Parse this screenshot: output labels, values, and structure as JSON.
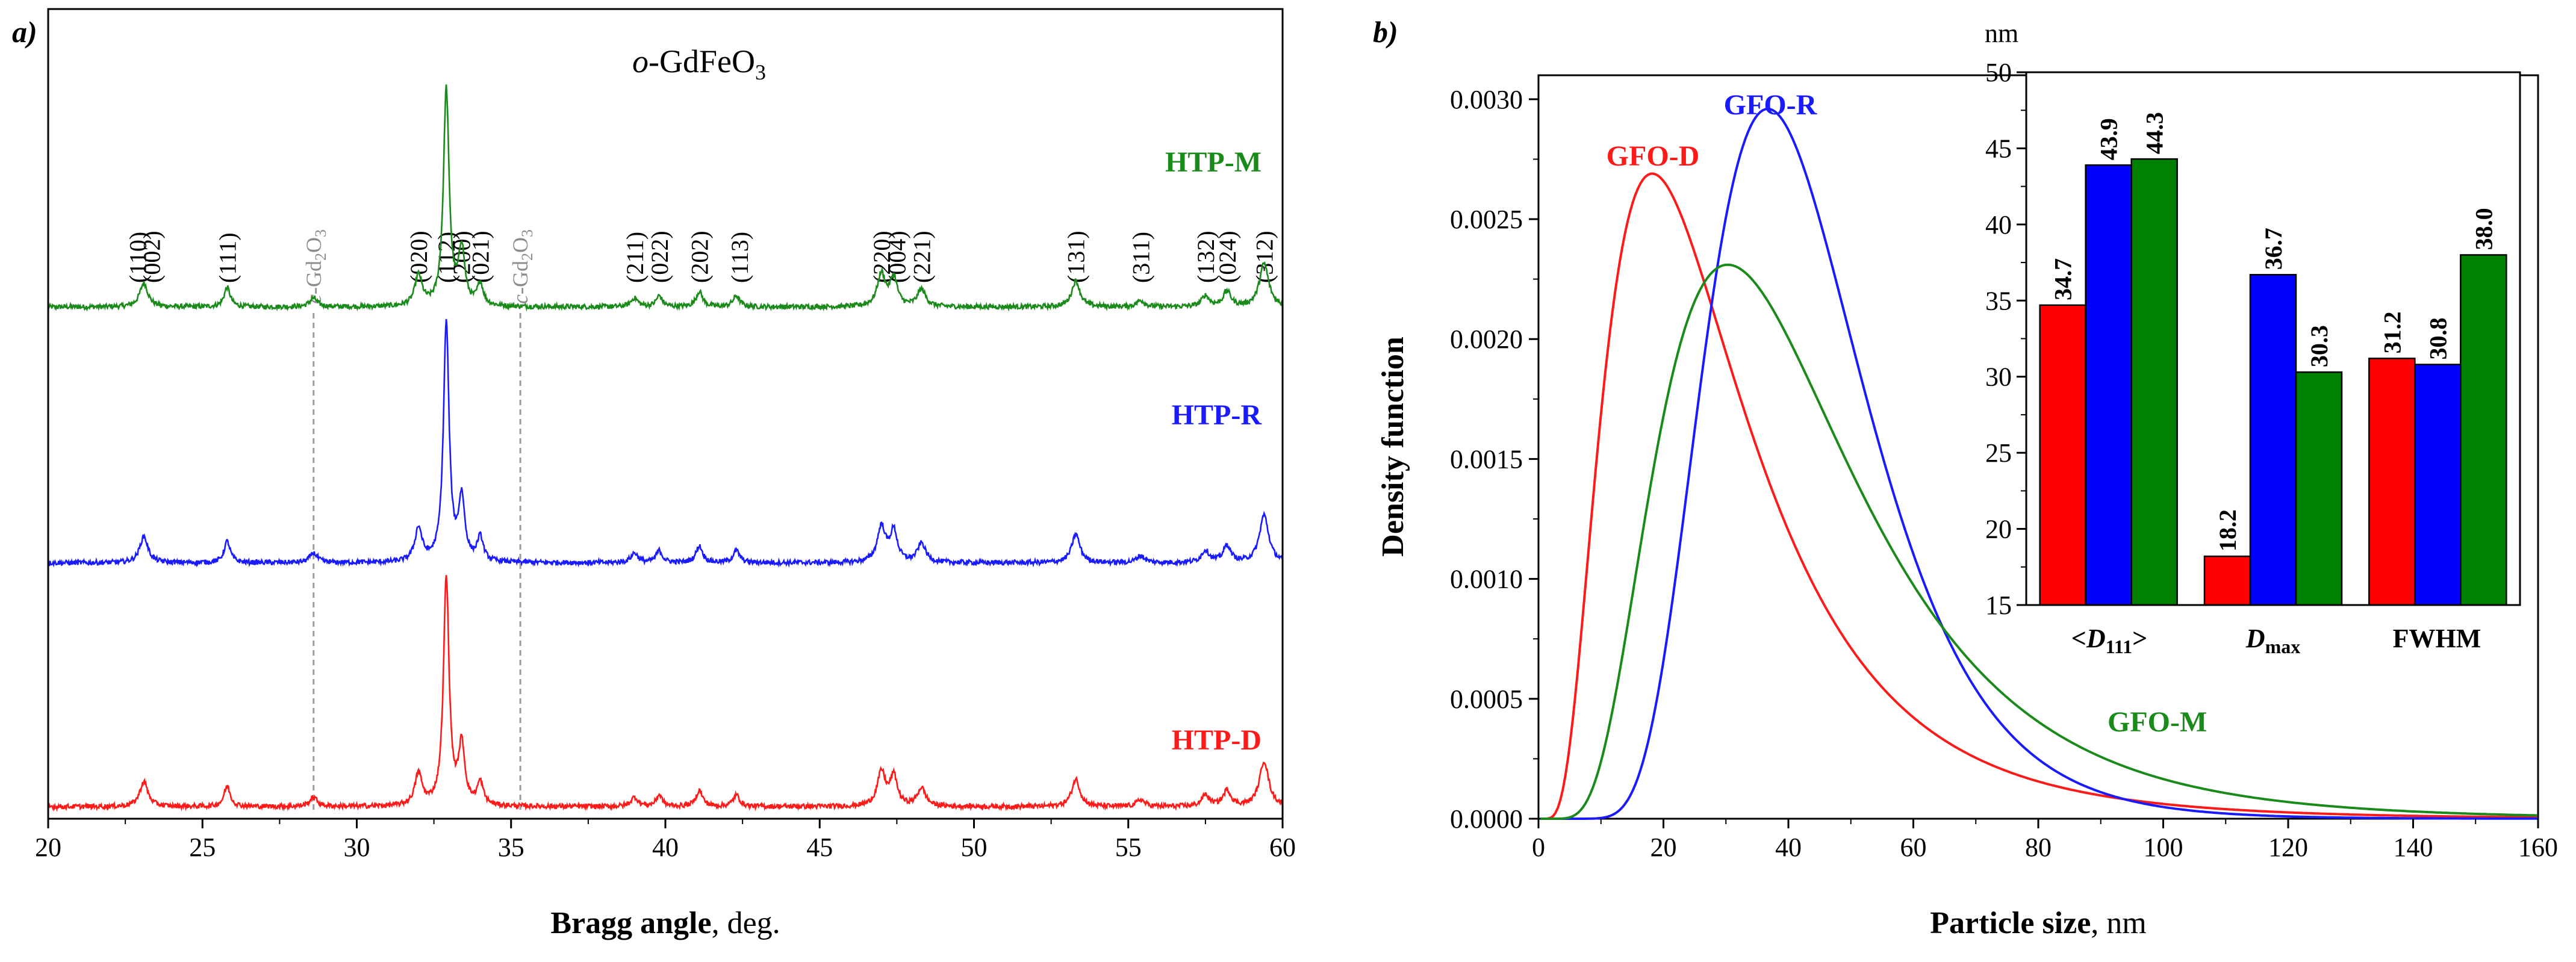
{
  "figure": {
    "panel_a_label": "a)",
    "panel_b_label": "b)"
  },
  "chart_data": [
    {
      "id": "xrd",
      "type": "line",
      "title_prefix": "o",
      "title_main": "-GdFeO",
      "title_sub": "3",
      "xlabel_bold": "Bragg angle",
      "xlabel_rest": ", deg.",
      "xlim": [
        20,
        60
      ],
      "xticks": [
        20,
        25,
        30,
        35,
        40,
        45,
        50,
        55,
        60
      ],
      "series": [
        {
          "name": "HTP-M",
          "color": "#1a8a1a",
          "intensity_scale": 1.0
        },
        {
          "name": "HTP-R",
          "color": "#1a1aff",
          "intensity_scale": 1.1
        },
        {
          "name": "HTP-D",
          "color": "#ff1a1a",
          "intensity_scale": 1.05
        }
      ],
      "peaks": [
        {
          "pos": 23.1,
          "h": 0.11,
          "w": 0.16
        },
        {
          "pos": 25.8,
          "h": 0.09,
          "w": 0.12
        },
        {
          "pos": 28.6,
          "h": 0.04,
          "w": 0.15
        },
        {
          "pos": 32.0,
          "h": 0.14,
          "w": 0.14
        },
        {
          "pos": 32.9,
          "h": 1.0,
          "w": 0.11
        },
        {
          "pos": 33.4,
          "h": 0.26,
          "w": 0.12
        },
        {
          "pos": 34.0,
          "h": 0.1,
          "w": 0.12
        },
        {
          "pos": 39.0,
          "h": 0.04,
          "w": 0.14
        },
        {
          "pos": 39.8,
          "h": 0.05,
          "w": 0.12
        },
        {
          "pos": 41.1,
          "h": 0.07,
          "w": 0.13
        },
        {
          "pos": 42.3,
          "h": 0.05,
          "w": 0.13
        },
        {
          "pos": 47.0,
          "h": 0.15,
          "w": 0.16
        },
        {
          "pos": 47.4,
          "h": 0.13,
          "w": 0.14
        },
        {
          "pos": 48.3,
          "h": 0.08,
          "w": 0.16
        },
        {
          "pos": 53.3,
          "h": 0.12,
          "w": 0.16
        },
        {
          "pos": 55.4,
          "h": 0.03,
          "w": 0.15
        },
        {
          "pos": 57.5,
          "h": 0.05,
          "w": 0.15
        },
        {
          "pos": 58.2,
          "h": 0.07,
          "w": 0.15
        },
        {
          "pos": 59.4,
          "h": 0.2,
          "w": 0.18
        }
      ],
      "reflections": [
        {
          "label": "(110)",
          "pos": 22.9
        },
        {
          "label": "(002)",
          "pos": 23.35
        },
        {
          "label": "(111)",
          "pos": 25.8
        },
        {
          "label": "(020)",
          "pos": 32.0
        },
        {
          "label": "(112)",
          "pos": 32.9
        },
        {
          "label": "(200)",
          "pos": 33.4
        },
        {
          "label": "(021)",
          "pos": 34.0
        },
        {
          "label": "(211)",
          "pos": 39.0
        },
        {
          "label": "(022)",
          "pos": 39.8
        },
        {
          "label": "(202)",
          "pos": 41.1
        },
        {
          "label": "(113)",
          "pos": 42.4
        },
        {
          "label": "(220)",
          "pos": 47.0
        },
        {
          "label": "(004)",
          "pos": 47.5
        },
        {
          "label": "(221)",
          "pos": 48.3
        },
        {
          "label": "(131)",
          "pos": 53.3
        },
        {
          "label": "(311)",
          "pos": 55.4
        },
        {
          "label": "(132)",
          "pos": 57.5
        },
        {
          "label": "(024)",
          "pos": 58.2
        },
        {
          "label": "(312)",
          "pos": 59.4
        }
      ],
      "impurity": {
        "label_prefix": "c",
        "label_main": "-Gd",
        "label_sub1": "2",
        "label_mid": "O",
        "label_sub2": "3",
        "positions": [
          28.6,
          35.3
        ]
      }
    },
    {
      "id": "psd",
      "type": "line",
      "xlabel_bold": "Particle size",
      "xlabel_rest": ", nm",
      "ylabel": "Density function",
      "xlim": [
        0,
        160
      ],
      "ylim": [
        0,
        0.0031
      ],
      "xticks": [
        0,
        20,
        40,
        60,
        80,
        100,
        120,
        140,
        160
      ],
      "yticks": [
        "0.0000",
        "0.0005",
        "0.0010",
        "0.0015",
        "0.0020",
        "0.0025",
        "0.0030"
      ],
      "series": [
        {
          "name": "GFO-D",
          "color": "#ff1a1a",
          "mode_nm": 18.2,
          "sigma": 0.62,
          "peak_density": 0.00269
        },
        {
          "name": "GFO-R",
          "color": "#1a1aff",
          "mode_nm": 36.7,
          "sigma": 0.35,
          "peak_density": 0.00296
        },
        {
          "name": "GFO-M",
          "color": "#1a8a1a",
          "mode_nm": 30.3,
          "sigma": 0.52,
          "peak_density": 0.00231
        }
      ]
    },
    {
      "id": "inset",
      "type": "bar",
      "unit": "nm",
      "ylim": [
        15,
        50
      ],
      "yticks": [
        15,
        20,
        25,
        30,
        35,
        40,
        45,
        50
      ],
      "categories": [
        "<D111>",
        "Dmax",
        "FWHM"
      ],
      "series": [
        {
          "name": "GFO-D",
          "color": "#ff0000",
          "values": [
            34.7,
            18.2,
            31.2
          ]
        },
        {
          "name": "GFO-R",
          "color": "#0000ff",
          "values": [
            43.9,
            36.7,
            30.8
          ]
        },
        {
          "name": "GFO-M",
          "color": "#008000",
          "values": [
            44.3,
            30.3,
            38.0
          ]
        }
      ],
      "value_labels": [
        [
          "34.7",
          "18.2",
          "31.2"
        ],
        [
          "43.9",
          "36.7",
          "30.8"
        ],
        [
          "44.3",
          "30.3",
          "38.0"
        ]
      ],
      "cat_label_1_pre": "<",
      "cat_label_1_main": "D",
      "cat_label_1_sub": "111",
      "cat_label_1_post": ">",
      "cat_label_2_main": "D",
      "cat_label_2_sub": "max",
      "cat_label_3": "FWHM"
    }
  ]
}
